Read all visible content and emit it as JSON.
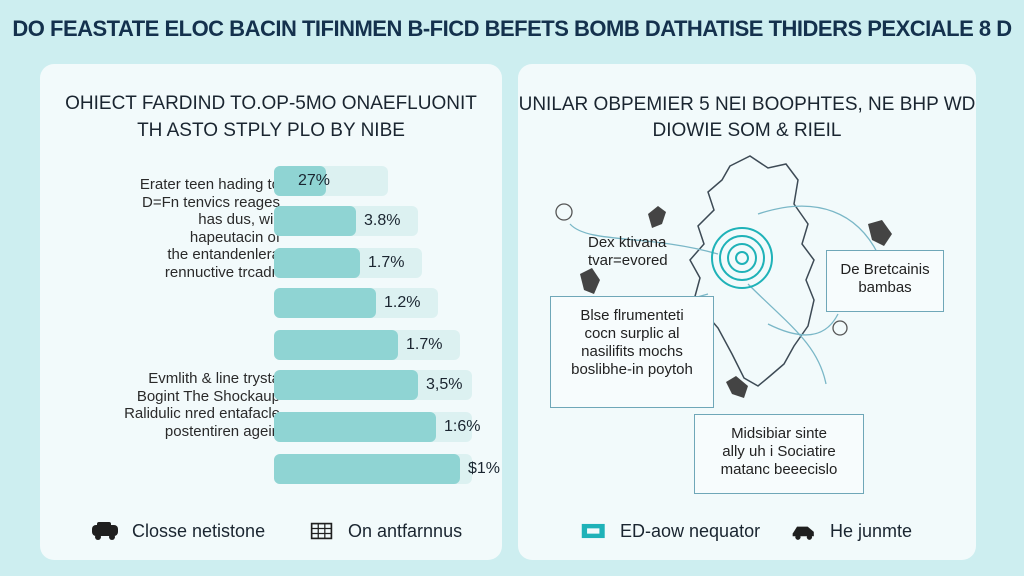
{
  "page": {
    "title": "DO FEASTATE ELOC BACIN TIFINMEN B-FICD BEFETS BOMB DATHATISE THIDERS PEXCIALE 8 D"
  },
  "left_panel": {
    "heading_line1": "OHIECT FARDIND TO.OP-5MO ONAEFLUONIT",
    "heading_line2": "TH ASTO STPLY PLO BY NIBE",
    "text_a": [
      "Erater teen hading to",
      "D=Fn tenvics reages",
      "has dus, wiil",
      "hapeutacin of",
      "the entandenlera",
      "rennuctive trcadn"
    ],
    "text_b": [
      "Evmlith & line trysta",
      "Bogint The Shockaup",
      "Ralidulic nred entafacle",
      "postentiren agein"
    ],
    "bars": [
      {
        "label": "27%",
        "value": 0.26
      },
      {
        "label": "3.8%",
        "value": 0.41
      },
      {
        "label": "1.7%",
        "value": 0.43
      },
      {
        "label": "1.2%",
        "value": 0.51
      },
      {
        "label": "1.7%",
        "value": 0.62
      },
      {
        "label": "3,5%",
        "value": 0.72
      },
      {
        "label": "1:6%",
        "value": 0.81
      },
      {
        "label": "$1%",
        "value": 0.93
      }
    ],
    "legend": [
      {
        "icon": "vehicle-icon",
        "label": "Closse netistone"
      },
      {
        "icon": "grid-icon",
        "label": "On antfarnnus"
      }
    ]
  },
  "right_panel": {
    "heading_line1": "UNILAR OBPEMIER 5 NEI BOOPHTES, NE BHP WD",
    "heading_line2": "DIOWIE SOM & RIEIL",
    "map_label": [
      "Dex ktivana",
      "tvar=evored"
    ],
    "box_right": [
      "De Bretcainis",
      "bambas"
    ],
    "box_left": [
      "Blse flrumenteti",
      "cocn surplic al",
      "nasilifits mochs",
      "boslibhe-in poytoh"
    ],
    "box_bottom": [
      "Midsibiar sinte",
      "ally uh i Sociatire",
      "matanc beeecislo"
    ],
    "legend": [
      {
        "icon": "node-icon",
        "label": "ED-aow nequator"
      },
      {
        "icon": "vehicle-icon",
        "label": "He junmte"
      }
    ]
  },
  "colors": {
    "background": "#cdeef0",
    "panel": "#f2fafb",
    "bar_fill": "#8fd4d3",
    "bar_track": "#dcf1f1",
    "accent": "#1fb2b8",
    "box_border": "#6fa7b8"
  }
}
